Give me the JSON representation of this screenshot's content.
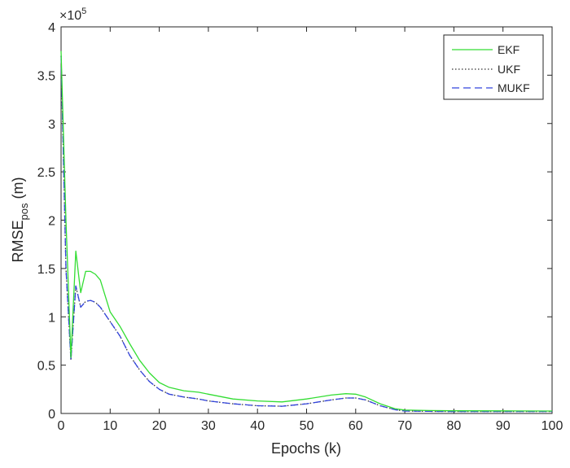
{
  "chart_data": {
    "type": "line",
    "title": "",
    "xlabel": "Epochs (k)",
    "ylabel_main": "RMSE",
    "ylabel_sub": "pos",
    "ylabel_unit": " (m)",
    "y_exponent_base": "×10",
    "y_exponent_power": "5",
    "xlim": [
      0,
      100
    ],
    "ylim": [
      0,
      4
    ],
    "y_scale_factor": 100000,
    "x_ticks": [
      0,
      10,
      20,
      30,
      40,
      50,
      60,
      70,
      80,
      90,
      100
    ],
    "y_ticks": [
      0,
      0.5,
      1,
      1.5,
      2,
      2.5,
      3,
      3.5,
      4
    ],
    "y_tick_labels": [
      "0",
      "0.5",
      "1",
      "1.5",
      "2",
      "2.5",
      "3",
      "3.5",
      "4"
    ],
    "grid": false,
    "legend_position": "top-right",
    "series": [
      {
        "name": "EKF",
        "color": "#33dd33",
        "style": "solid",
        "x": [
          0,
          1,
          2,
          3,
          4,
          5,
          6,
          7,
          8,
          10,
          12,
          14,
          16,
          18,
          20,
          22,
          25,
          28,
          30,
          35,
          40,
          45,
          50,
          55,
          58,
          60,
          62,
          65,
          68,
          70,
          75,
          80,
          90,
          100
        ],
        "y": [
          3.75,
          2.0,
          0.58,
          1.68,
          1.25,
          1.47,
          1.47,
          1.44,
          1.38,
          1.05,
          0.9,
          0.72,
          0.55,
          0.42,
          0.32,
          0.27,
          0.235,
          0.22,
          0.2,
          0.15,
          0.13,
          0.12,
          0.15,
          0.19,
          0.205,
          0.2,
          0.17,
          0.1,
          0.05,
          0.035,
          0.03,
          0.028,
          0.027,
          0.025
        ]
      },
      {
        "name": "UKF",
        "color": "#333333",
        "style": "dotted",
        "x": [
          0,
          1,
          2,
          3,
          4,
          5,
          6,
          7,
          8,
          10,
          12,
          14,
          16,
          18,
          20,
          22,
          25,
          28,
          30,
          35,
          40,
          45,
          50,
          55,
          58,
          60,
          62,
          65,
          68,
          70,
          75,
          80,
          90,
          100
        ],
        "y": [
          3.7,
          1.5,
          0.55,
          1.32,
          1.1,
          1.16,
          1.17,
          1.15,
          1.1,
          0.95,
          0.8,
          0.6,
          0.45,
          0.33,
          0.25,
          0.2,
          0.17,
          0.15,
          0.13,
          0.1,
          0.08,
          0.075,
          0.1,
          0.14,
          0.16,
          0.16,
          0.14,
          0.08,
          0.04,
          0.025,
          0.022,
          0.02,
          0.02,
          0.02
        ]
      },
      {
        "name": "MUKF",
        "color": "#3344dd",
        "style": "dashed",
        "x": [
          0,
          1,
          2,
          3,
          4,
          5,
          6,
          7,
          8,
          10,
          12,
          14,
          16,
          18,
          20,
          22,
          25,
          28,
          30,
          35,
          40,
          45,
          50,
          55,
          58,
          60,
          62,
          65,
          68,
          70,
          75,
          80,
          90,
          100
        ],
        "y": [
          3.7,
          1.5,
          0.55,
          1.32,
          1.1,
          1.16,
          1.17,
          1.15,
          1.1,
          0.95,
          0.8,
          0.6,
          0.45,
          0.33,
          0.25,
          0.2,
          0.17,
          0.15,
          0.13,
          0.1,
          0.08,
          0.075,
          0.1,
          0.14,
          0.16,
          0.16,
          0.14,
          0.08,
          0.04,
          0.025,
          0.022,
          0.02,
          0.02,
          0.02
        ]
      }
    ]
  }
}
